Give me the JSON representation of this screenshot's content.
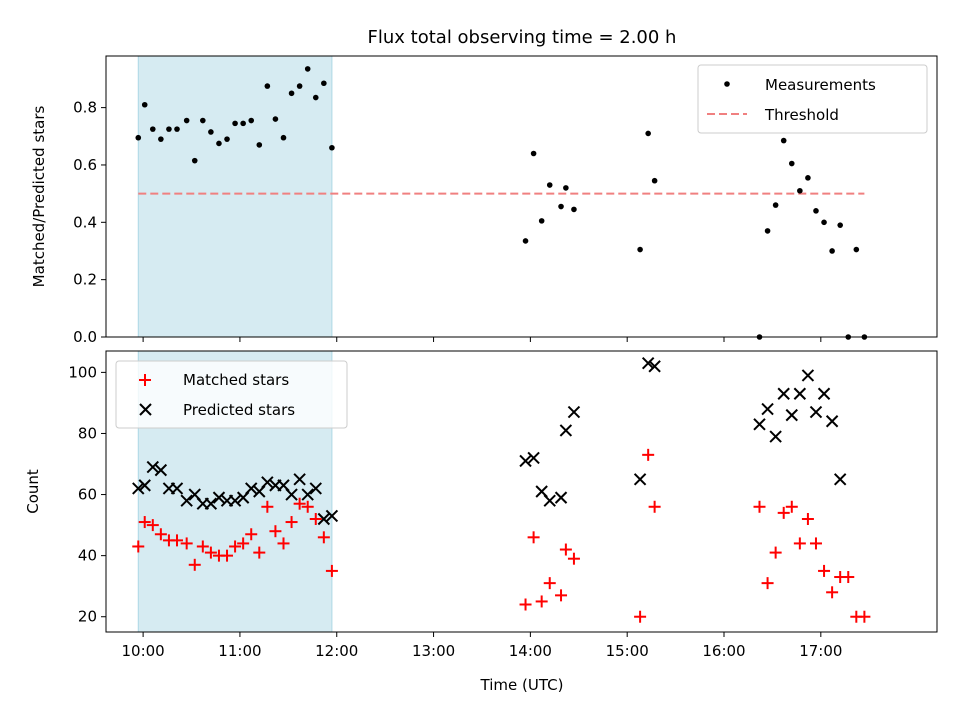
{
  "chart_data": [
    {
      "type": "scatter",
      "title": "Flux total observing time = 2.00 h",
      "xlabel": "",
      "ylabel": "Matched/Predicted stars",
      "xlim": [
        "09:37",
        "18:12"
      ],
      "ylim": [
        0,
        0.98
      ],
      "yticks": [
        0.0,
        0.2,
        0.4,
        0.6,
        0.8
      ],
      "ytick_labels": [
        "0.0",
        "0.2",
        "0.4",
        "0.6",
        "0.8"
      ],
      "shaded_span": [
        "09:57",
        "11:57"
      ],
      "legend": {
        "placement": "top-right",
        "entries": [
          "Measurements",
          "Threshold"
        ]
      },
      "threshold": {
        "value": 0.5,
        "x_range": [
          "09:57",
          "17:27"
        ],
        "color": "#f08080",
        "style": "dashed"
      },
      "series": [
        {
          "name": "Measurements",
          "color": "#000000",
          "marker": "dot",
          "points": [
            [
              "09:57",
              0.695
            ],
            [
              "10:01",
              0.81
            ],
            [
              "10:06",
              0.725
            ],
            [
              "10:11",
              0.69
            ],
            [
              "10:16",
              0.725
            ],
            [
              "10:21",
              0.725
            ],
            [
              "10:27",
              0.755
            ],
            [
              "10:32",
              0.615
            ],
            [
              "10:37",
              0.755
            ],
            [
              "10:42",
              0.715
            ],
            [
              "10:47",
              0.675
            ],
            [
              "10:52",
              0.69
            ],
            [
              "10:57",
              0.745
            ],
            [
              "11:02",
              0.745
            ],
            [
              "11:07",
              0.755
            ],
            [
              "11:12",
              0.67
            ],
            [
              "11:17",
              0.875
            ],
            [
              "11:22",
              0.76
            ],
            [
              "11:27",
              0.695
            ],
            [
              "11:32",
              0.85
            ],
            [
              "11:37",
              0.875
            ],
            [
              "11:42",
              0.935
            ],
            [
              "11:47",
              0.835
            ],
            [
              "11:52",
              0.885
            ],
            [
              "11:57",
              0.66
            ],
            [
              "13:57",
              0.335
            ],
            [
              "14:02",
              0.64
            ],
            [
              "14:07",
              0.405
            ],
            [
              "14:12",
              0.53
            ],
            [
              "14:19",
              0.455
            ],
            [
              "14:22",
              0.52
            ],
            [
              "14:27",
              0.445
            ],
            [
              "15:08",
              0.305
            ],
            [
              "15:13",
              0.71
            ],
            [
              "15:17",
              0.545
            ],
            [
              "16:22",
              0.0
            ],
            [
              "16:27",
              0.37
            ],
            [
              "16:32",
              0.46
            ],
            [
              "16:37",
              0.685
            ],
            [
              "16:42",
              0.605
            ],
            [
              "16:47",
              0.51
            ],
            [
              "16:52",
              0.555
            ],
            [
              "16:57",
              0.44
            ],
            [
              "17:02",
              0.4
            ],
            [
              "17:07",
              0.3
            ],
            [
              "17:12",
              0.39
            ],
            [
              "17:17",
              0.0
            ],
            [
              "17:22",
              0.305
            ],
            [
              "17:27",
              0.0
            ]
          ]
        }
      ]
    },
    {
      "type": "scatter",
      "title": "",
      "xlabel": "Time (UTC)",
      "ylabel": "Count",
      "xlim": [
        "09:37",
        "18:12"
      ],
      "ylim": [
        15,
        107
      ],
      "yticks": [
        20,
        40,
        60,
        80,
        100
      ],
      "ytick_labels": [
        "20",
        "40",
        "60",
        "80",
        "100"
      ],
      "xticks": [
        "10:00",
        "11:00",
        "12:00",
        "13:00",
        "14:00",
        "15:00",
        "16:00",
        "17:00"
      ],
      "xtick_labels": [
        "10:00",
        "11:00",
        "12:00",
        "13:00",
        "14:00",
        "15:00",
        "16:00",
        "17:00"
      ],
      "shaded_span": [
        "09:57",
        "11:57"
      ],
      "legend": {
        "placement": "top-left",
        "entries": [
          "Matched stars",
          "Predicted stars"
        ]
      },
      "series": [
        {
          "name": "Matched stars",
          "color": "#ff0000",
          "marker": "plus",
          "points": [
            [
              "09:57",
              43
            ],
            [
              "10:01",
              51
            ],
            [
              "10:06",
              50
            ],
            [
              "10:11",
              47
            ],
            [
              "10:16",
              45
            ],
            [
              "10:21",
              45
            ],
            [
              "10:27",
              44
            ],
            [
              "10:32",
              37
            ],
            [
              "10:37",
              43
            ],
            [
              "10:42",
              41
            ],
            [
              "10:47",
              40
            ],
            [
              "10:52",
              40
            ],
            [
              "10:57",
              43
            ],
            [
              "11:02",
              44
            ],
            [
              "11:07",
              47
            ],
            [
              "11:12",
              41
            ],
            [
              "11:17",
              56
            ],
            [
              "11:22",
              48
            ],
            [
              "11:27",
              44
            ],
            [
              "11:32",
              51
            ],
            [
              "11:37",
              57
            ],
            [
              "11:42",
              56
            ],
            [
              "11:47",
              52
            ],
            [
              "11:52",
              46
            ],
            [
              "11:57",
              35
            ],
            [
              "13:57",
              24
            ],
            [
              "14:02",
              46
            ],
            [
              "14:07",
              25
            ],
            [
              "14:12",
              31
            ],
            [
              "14:19",
              27
            ],
            [
              "14:22",
              42
            ],
            [
              "14:27",
              39
            ],
            [
              "15:08",
              20
            ],
            [
              "15:13",
              73
            ],
            [
              "15:17",
              56
            ],
            [
              "16:22",
              56
            ],
            [
              "16:27",
              31
            ],
            [
              "16:32",
              41
            ],
            [
              "16:37",
              54
            ],
            [
              "16:42",
              56
            ],
            [
              "16:47",
              44
            ],
            [
              "16:52",
              52
            ],
            [
              "16:57",
              44
            ],
            [
              "17:02",
              35
            ],
            [
              "17:07",
              28
            ],
            [
              "17:12",
              33
            ],
            [
              "17:17",
              33
            ],
            [
              "17:22",
              20
            ],
            [
              "17:27",
              20
            ]
          ]
        },
        {
          "name": "Predicted stars",
          "color": "#000000",
          "marker": "x",
          "points": [
            [
              "09:57",
              62
            ],
            [
              "10:01",
              63
            ],
            [
              "10:06",
              69
            ],
            [
              "10:11",
              68
            ],
            [
              "10:16",
              62
            ],
            [
              "10:21",
              62
            ],
            [
              "10:27",
              58
            ],
            [
              "10:32",
              60
            ],
            [
              "10:37",
              57
            ],
            [
              "10:42",
              57
            ],
            [
              "10:47",
              59
            ],
            [
              "10:52",
              58
            ],
            [
              "10:57",
              58
            ],
            [
              "11:02",
              59
            ],
            [
              "11:07",
              62
            ],
            [
              "11:12",
              61
            ],
            [
              "11:17",
              64
            ],
            [
              "11:22",
              63
            ],
            [
              "11:27",
              63
            ],
            [
              "11:32",
              60
            ],
            [
              "11:37",
              65
            ],
            [
              "11:42",
              60
            ],
            [
              "11:47",
              62
            ],
            [
              "11:52",
              52
            ],
            [
              "11:57",
              53
            ],
            [
              "13:57",
              71
            ],
            [
              "14:02",
              72
            ],
            [
              "14:07",
              61
            ],
            [
              "14:12",
              58
            ],
            [
              "14:19",
              59
            ],
            [
              "14:22",
              81
            ],
            [
              "14:27",
              87
            ],
            [
              "15:08",
              65
            ],
            [
              "15:13",
              103
            ],
            [
              "15:17",
              102
            ],
            [
              "16:22",
              83
            ],
            [
              "16:27",
              88
            ],
            [
              "16:32",
              79
            ],
            [
              "16:37",
              93
            ],
            [
              "16:42",
              86
            ],
            [
              "16:47",
              93
            ],
            [
              "16:52",
              99
            ],
            [
              "16:57",
              87
            ],
            [
              "17:02",
              93
            ],
            [
              "17:07",
              84
            ],
            [
              "17:12",
              65
            ]
          ]
        }
      ]
    }
  ],
  "colors": {
    "shade": "#add8e6",
    "threshold": "#f08080",
    "matched": "#ff0000",
    "predicted": "#000000",
    "measurement": "#000000"
  }
}
